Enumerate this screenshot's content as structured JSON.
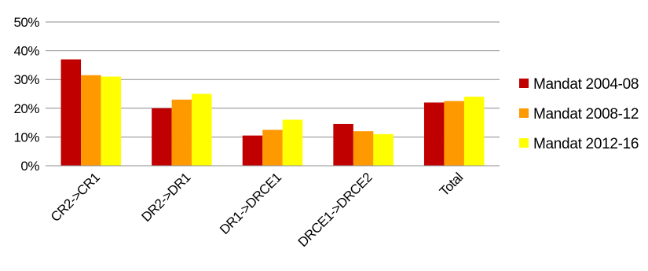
{
  "chart_data": {
    "type": "bar",
    "categories": [
      "CR2->CR1",
      "DR2->DR1",
      "DR1->DRCE1",
      "DRCE1->DRCE2",
      "Total"
    ],
    "series": [
      {
        "name": "Mandat 2004-08",
        "color": "#C00000",
        "values": [
          37,
          20,
          10.5,
          14.5,
          22
        ]
      },
      {
        "name": "Mandat 2008-12",
        "color": "#FF9900",
        "values": [
          31.5,
          23,
          12.5,
          12,
          22.5
        ]
      },
      {
        "name": "Mandat 2012-16",
        "color": "#FFFF00",
        "values": [
          31,
          25,
          16,
          11,
          24
        ]
      }
    ],
    "ylim": [
      0,
      50
    ],
    "yticks": [
      0,
      10,
      20,
      30,
      40,
      50
    ],
    "ytick_labels": [
      "0%",
      "10%",
      "20%",
      "30%",
      "40%",
      "50%"
    ],
    "grid": true,
    "legend_position": "right",
    "title": "",
    "xlabel": "",
    "ylabel": ""
  }
}
